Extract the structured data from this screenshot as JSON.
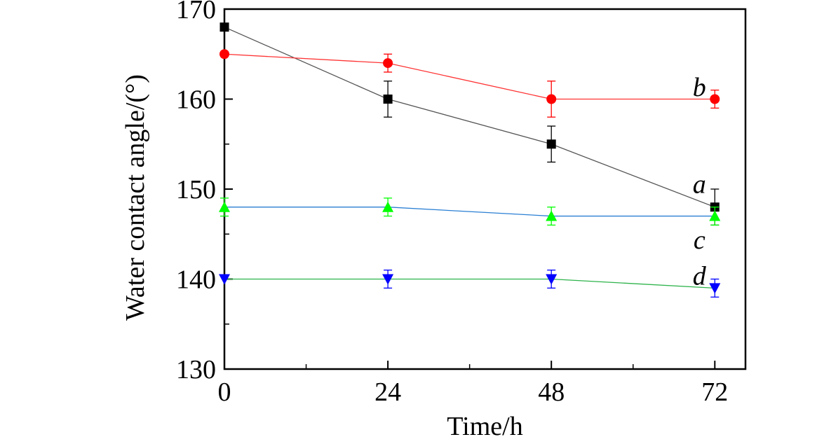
{
  "chart_data": {
    "type": "line",
    "title": "",
    "xlabel": "Time/h",
    "ylabel": "Water contact angle/(°)",
    "x": [
      0,
      24,
      48,
      72
    ],
    "xlim": [
      0,
      76.5
    ],
    "ylim": [
      130,
      170
    ],
    "xticks": [
      0,
      24,
      48,
      72
    ],
    "yticks": [
      130,
      140,
      150,
      160,
      170
    ],
    "xtick_labels": [
      "0",
      "24",
      "48",
      "72"
    ],
    "ytick_labels": [
      "130",
      "140",
      "150",
      "160",
      "170"
    ],
    "grid": false,
    "legend": "none",
    "series": [
      {
        "name": "a",
        "marker": "square",
        "marker_color": "#000000",
        "line_color": "#555555",
        "values": [
          168,
          160,
          155,
          148
        ],
        "errors": [
          0,
          2,
          2,
          2
        ]
      },
      {
        "name": "b",
        "marker": "circle",
        "marker_color": "#ff0000",
        "line_color": "#ff3333",
        "values": [
          165,
          164,
          160,
          160
        ],
        "errors": [
          0,
          1,
          2,
          1
        ]
      },
      {
        "name": "c",
        "marker": "triangle-up",
        "marker_color": "#00ff00",
        "line_color": "#2a7fd4",
        "values": [
          148,
          148,
          147,
          147
        ],
        "errors": [
          1,
          1,
          1,
          1
        ]
      },
      {
        "name": "d",
        "marker": "triangle-down",
        "marker_color": "#0000ff",
        "line_color": "#2db34a",
        "values": [
          140,
          140,
          140,
          139
        ],
        "errors": [
          0,
          1,
          1,
          1
        ]
      }
    ],
    "annotations": [
      {
        "text": "a",
        "series": "a",
        "x": 72,
        "y": 150.5
      },
      {
        "text": "b",
        "series": "b",
        "x": 72,
        "y": 161.3
      },
      {
        "text": "c",
        "series": "c",
        "x": 72,
        "y": 144.3
      },
      {
        "text": "d",
        "series": "d",
        "x": 72,
        "y": 140.3
      }
    ]
  }
}
